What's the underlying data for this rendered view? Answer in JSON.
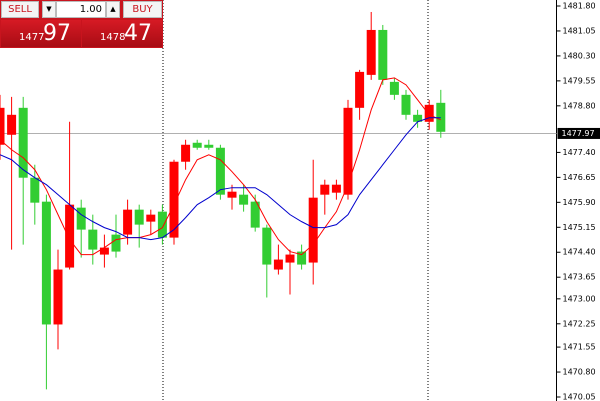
{
  "chart_data": {
    "type": "candlestick",
    "ylim": [
      1469.93,
      1481.98
    ],
    "yticks": [
      {
        "value": 1481.8,
        "label": "1481.80"
      },
      1481.05,
      {
        "value": 1480.3,
        "label": "1480.30"
      },
      1479.55,
      {
        "value": 1478.8,
        "label": "1478.80"
      },
      {
        "value": 1477.4,
        "label": "1477.40"
      },
      1476.65,
      {
        "value": 1475.9,
        "label": "1475.90"
      },
      1475.15,
      {
        "value": 1474.4,
        "label": "1474.40"
      },
      1473.65,
      {
        "value": 1473.0,
        "label": "1473.00"
      },
      1472.25,
      1471.55,
      {
        "value": 1470.8,
        "label": "1470.80"
      },
      1470.05
    ],
    "current_price": 1477.97,
    "up_color": "#ff0000",
    "down_color": "#32cd32",
    "open": [
      1477.63,
      1477.93,
      1478.74,
      1476.64,
      1475.92,
      1472.23,
      1473.94,
      1475.74,
      1475.08,
      1474.33,
      1474.93,
      1474.93,
      1475.68,
      1475.32,
      1475.62,
      1474.84,
      1477.12,
      1477.69,
      1477.63,
      1477.54,
      1476.04,
      1476.13,
      1475.92,
      1475.14,
      1473.88,
      1474.09,
      1474.42,
      1474.09,
      1476.13,
      1476.19,
      1476.13,
      1478.74,
      1479.73,
      1481.08,
      1479.52,
      1479.13,
      1478.53,
      1478.32,
      1478.89
    ],
    "high": [
      1479.13,
      1479.07,
      1479.07,
      1477.03,
      1476.13,
      1474.48,
      1478.32,
      1475.98,
      1475.53,
      1474.93,
      1475.53,
      1475.98,
      1475.83,
      1475.68,
      1475.83,
      1477.18,
      1477.78,
      1477.78,
      1477.78,
      1477.63,
      1476.43,
      1476.43,
      1476.13,
      1475.23,
      1474.63,
      1474.48,
      1474.63,
      1477.18,
      1476.58,
      1476.58,
      1478.98,
      1479.88,
      1481.62,
      1481.23,
      1479.64,
      1479.28,
      1478.68,
      1478.98,
      1479.28
    ],
    "low": [
      1477.18,
      1474.48,
      1474.63,
      1475.23,
      1470.28,
      1471.48,
      1473.88,
      1474.24,
      1474.03,
      1473.94,
      1474.24,
      1474.63,
      1474.54,
      1474.93,
      1474.63,
      1474.63,
      1476.88,
      1477.48,
      1477.48,
      1475.98,
      1475.68,
      1475.62,
      1475.02,
      1473.04,
      1473.73,
      1473.13,
      1473.88,
      1473.43,
      1475.53,
      1475.98,
      1475.98,
      1478.38,
      1479.58,
      1479.43,
      1478.98,
      1478.38,
      1478.14,
      1478.08,
      1477.84
    ],
    "close": [
      1478.74,
      1478.53,
      1476.64,
      1475.89,
      1472.23,
      1473.88,
      1475.83,
      1475.08,
      1474.48,
      1474.54,
      1474.42,
      1475.68,
      1475.23,
      1475.53,
      1474.84,
      1477.12,
      1477.63,
      1477.54,
      1477.54,
      1476.13,
      1476.22,
      1475.83,
      1475.14,
      1474.03,
      1474.18,
      1474.33,
      1474.03,
      1476.04,
      1476.43,
      1476.43,
      1478.74,
      1479.82,
      1481.08,
      1479.58,
      1479.13,
      1478.53,
      1478.32,
      1478.83,
      1478.02
    ],
    "lines": [
      {
        "color": "#ff0000",
        "values": [
          1477.78,
          1477.48,
          1477.24,
          1476.88,
          1476.28,
          1475.53,
          1474.78,
          1474.33,
          1474.33,
          1474.54,
          1474.78,
          1474.84,
          1474.84,
          1474.93,
          1475.14,
          1475.83,
          1476.58,
          1477.18,
          1477.33,
          1477.18,
          1476.82,
          1476.43,
          1475.98,
          1475.32,
          1474.78,
          1474.42,
          1474.33,
          1474.63,
          1475.14,
          1475.62,
          1476.43,
          1477.48,
          1478.68,
          1479.58,
          1479.64,
          1479.43,
          1478.98,
          1478.53,
          1478.38
        ]
      },
      {
        "color": "#0000cd",
        "values": [
          1477.33,
          1477.18,
          1476.88,
          1476.64,
          1476.43,
          1476.13,
          1475.83,
          1475.53,
          1475.32,
          1475.14,
          1475.02,
          1474.84,
          1474.84,
          1474.78,
          1474.84,
          1475.08,
          1475.44,
          1475.83,
          1476.04,
          1476.28,
          1476.34,
          1476.34,
          1476.34,
          1476.13,
          1475.83,
          1475.53,
          1475.32,
          1475.14,
          1475.14,
          1475.23,
          1475.53,
          1476.13,
          1476.58,
          1477.03,
          1477.48,
          1477.93,
          1478.32,
          1478.44,
          1478.44
        ]
      }
    ]
  },
  "trade_panel": {
    "sell_label": "SELL",
    "lot": "1.00",
    "buy_label": "BUY",
    "sell_price": {
      "small": "1477",
      "big": "97"
    },
    "buy_price": {
      "small": "1478",
      "big": "47"
    }
  }
}
